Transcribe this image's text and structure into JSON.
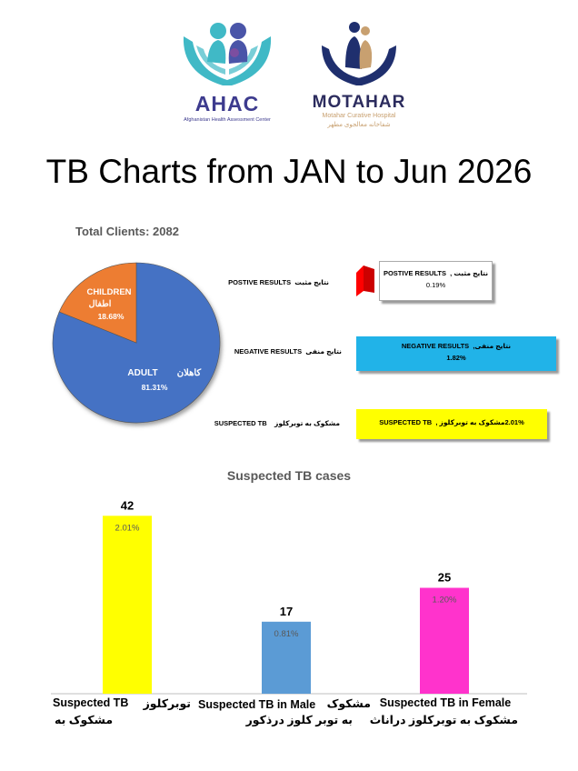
{
  "logos": {
    "ahac": {
      "name": "AHAC",
      "subtitle": "Afghanistan Health Assessment Center",
      "colors": [
        "#40b9c6",
        "#4a55a8",
        "#7c4ea0"
      ]
    },
    "motahar": {
      "name": "MOTAHAR",
      "subtitle": "Motahar Curative Hospital",
      "subtitle_fa": "شفاخانه معالجوی مطهر",
      "colors": [
        "#1f2f6e",
        "#c8a070"
      ]
    }
  },
  "title": "TB Charts from JAN to Jun 2026",
  "chart_data": [
    {
      "type": "pie",
      "title": "Total Clients: 2082",
      "slices": [
        {
          "label": "ADULT",
          "label_fa": "کاهلان",
          "value": 81.31,
          "value_label": "81.31%",
          "color": "#4472c4"
        },
        {
          "label": "CHILDREN",
          "label_fa": "اطفال",
          "value": 18.68,
          "value_label": "18.68%",
          "color": "#ed7d31"
        }
      ]
    },
    {
      "type": "table",
      "rows": [
        {
          "label": "POSTIVE RESULTS",
          "label_fa": "نتایج مثبت",
          "box_label": "POSTIVE RESULTS",
          "box_label_fa": "نتایج مثبت ,",
          "value_label": "0.19%",
          "color": "#ff0000"
        },
        {
          "label": "NEGATIVE RESULTS",
          "label_fa": "نتایج منفی",
          "box_label": "NEGATIVE RESULTS",
          "box_label_fa": "نتایج منفی,",
          "value_label": "1.82%",
          "color": "#21b3e8"
        },
        {
          "label": "SUSPECTED TB",
          "label_fa": "مشکوک به توبرکلوز",
          "box_label": "SUSPECTED TB",
          "box_label_fa": "مشکوک به توبرکلوز ,",
          "value_label": "2.01%",
          "color": "#ffff00"
        }
      ]
    },
    {
      "type": "bar",
      "title": "Suspected TB cases",
      "categories": [
        "Suspected TB",
        "Suspected TB in Male",
        "Suspected TB in Female"
      ],
      "categories_fa": [
        "مشکوک به توبرکلوز",
        "مشکوک به توبر کلوز درذکور",
        "مشکوک به توبرکلوز دراناث"
      ],
      "values": [
        42,
        17,
        25
      ],
      "value_labels": [
        "2.01%",
        "0.81%",
        "1.20%"
      ],
      "colors": [
        "#ffff00",
        "#5b9bd5",
        "#ff33cc"
      ],
      "ylim": [
        0,
        44
      ]
    }
  ]
}
